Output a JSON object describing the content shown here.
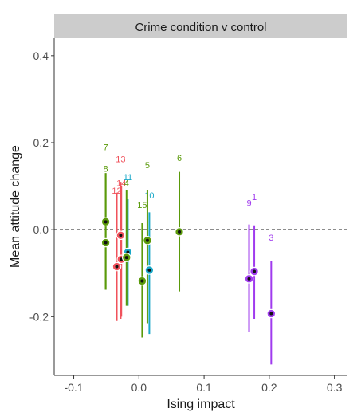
{
  "chart_data": {
    "type": "scatter",
    "title": "Crime condition v control",
    "xlabel": "Ising impact",
    "ylabel": "Mean attitude change",
    "xlim": [
      -0.13,
      0.32
    ],
    "ylim": [
      -0.335,
      0.44
    ],
    "xticks": [
      -0.1,
      0.0,
      0.1,
      0.2,
      0.3
    ],
    "xtick_labels": [
      "-0.1",
      "0.0",
      "0.1",
      "0.2",
      "0.3"
    ],
    "yticks": [
      -0.2,
      0.0,
      0.2,
      0.4
    ],
    "ytick_labels": [
      "-0.2",
      "0.0",
      "0.2",
      "0.4"
    ],
    "reference_line": {
      "y": 0.0,
      "style": "dashed"
    },
    "strip_fill": "#cccccc",
    "grid": false,
    "legend": "none",
    "points": [
      {
        "label": "7",
        "x": -0.051,
        "y": 0.018,
        "ymin": -0.138,
        "ymax": 0.13,
        "label_y": 0.183,
        "color": "#5a9a0a"
      },
      {
        "label": "8",
        "x": -0.051,
        "y": -0.03,
        "ymin": -0.138,
        "ymax": 0.13,
        "label_y": 0.133,
        "color": "#5a9a0a"
      },
      {
        "label": "13",
        "x": -0.028,
        "y": -0.013,
        "ymin": -0.205,
        "ymax": 0.11,
        "label_y": 0.155,
        "color": "#f0525c"
      },
      {
        "label": "12",
        "x": -0.034,
        "y": -0.085,
        "ymin": -0.21,
        "ymax": 0.085,
        "label_y": 0.083,
        "color": "#f0525c"
      },
      {
        "label": "14",
        "x": -0.027,
        "y": -0.068,
        "ymin": -0.2,
        "ymax": 0.1,
        "label_y": 0.1,
        "color": "#f0525c"
      },
      {
        "label": "11",
        "x": -0.017,
        "y": -0.052,
        "ymin": -0.175,
        "ymax": 0.07,
        "label_y": 0.114,
        "color": "#19a8c8"
      },
      {
        "label": "4",
        "x": -0.019,
        "y": -0.064,
        "ymin": -0.175,
        "ymax": 0.09,
        "label_y": 0.1,
        "color": "#5a9a0a"
      },
      {
        "label": "5",
        "x": 0.013,
        "y": -0.025,
        "ymin": -0.215,
        "ymax": 0.092,
        "label_y": 0.141,
        "color": "#5a9a0a"
      },
      {
        "label": "10",
        "x": 0.016,
        "y": -0.093,
        "ymin": -0.24,
        "ymax": 0.04,
        "label_y": 0.072,
        "color": "#19a8c8"
      },
      {
        "label": "15",
        "x": 0.005,
        "y": -0.118,
        "ymin": -0.248,
        "ymax": 0.015,
        "label_y": 0.05,
        "color": "#5a9a0a"
      },
      {
        "label": "6",
        "x": 0.062,
        "y": -0.005,
        "ymin": -0.142,
        "ymax": 0.133,
        "label_y": 0.158,
        "color": "#5a9a0a"
      },
      {
        "label": "9",
        "x": 0.169,
        "y": -0.113,
        "ymin": -0.236,
        "ymax": 0.012,
        "label_y": 0.054,
        "color": "#a03bee"
      },
      {
        "label": "1",
        "x": 0.177,
        "y": -0.096,
        "ymin": -0.205,
        "ymax": 0.01,
        "label_y": 0.068,
        "color": "#a03bee"
      },
      {
        "label": "3",
        "x": 0.203,
        "y": -0.193,
        "ymin": -0.31,
        "ymax": -0.073,
        "label_y": -0.025,
        "color": "#a03bee"
      }
    ]
  }
}
